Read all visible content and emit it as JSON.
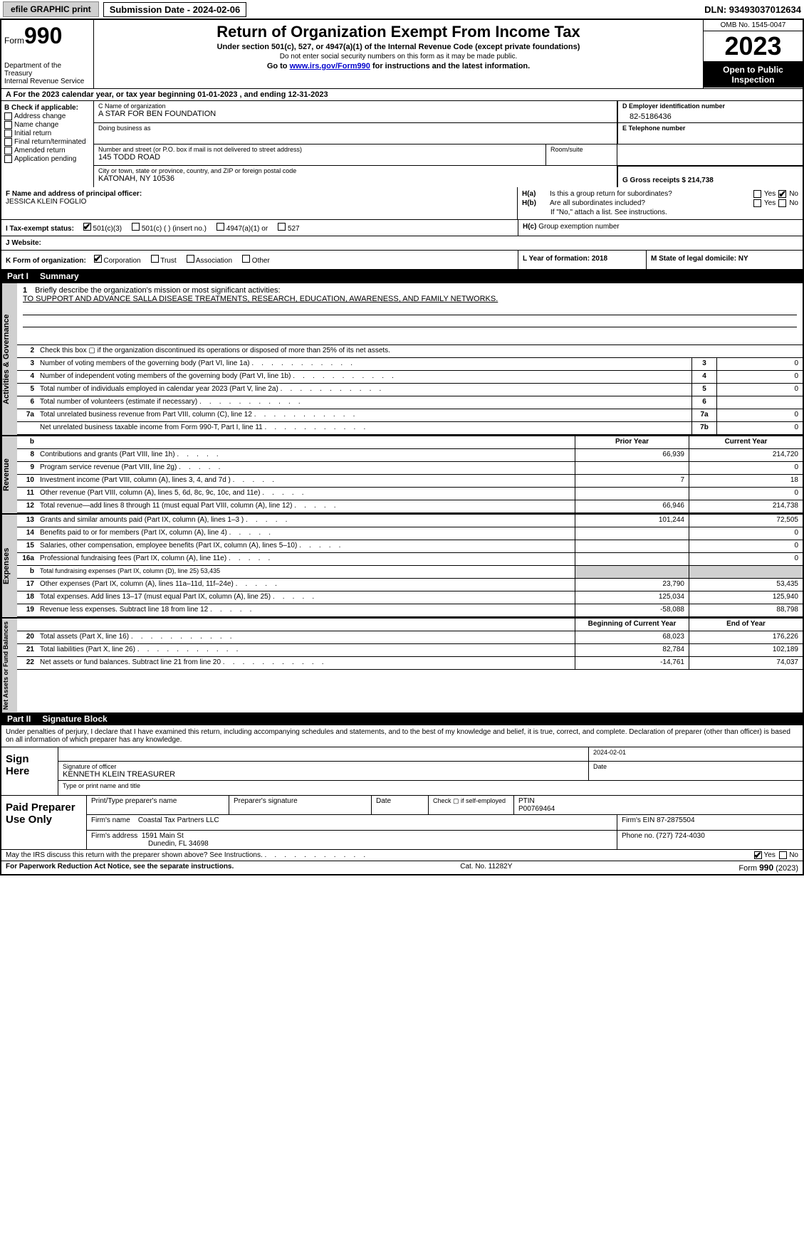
{
  "topbar": {
    "efile": "efile GRAPHIC print",
    "submission_label": "Submission Date - 2024-02-06",
    "dln_label": "DLN: 93493037012634"
  },
  "header": {
    "form_label": "Form",
    "form_number": "990",
    "dept": "Department of the Treasury",
    "irs": "Internal Revenue Service",
    "title": "Return of Organization Exempt From Income Tax",
    "subtitle": "Under section 501(c), 527, or 4947(a)(1) of the Internal Revenue Code (except private foundations)",
    "note1": "Do not enter social security numbers on this form as it may be made public.",
    "note2_pre": "Go to ",
    "note2_link": "www.irs.gov/Form990",
    "note2_post": " for instructions and the latest information.",
    "omb": "OMB No. 1545-0047",
    "year": "2023",
    "inspection": "Open to Public Inspection"
  },
  "line_a": "For the 2023 calendar year, or tax year beginning 01-01-2023   , and ending 12-31-2023",
  "col_b": {
    "hdr": "B Check if applicable:",
    "items": [
      "Address change",
      "Name change",
      "Initial return",
      "Final return/terminated",
      "Amended return",
      "Application pending"
    ]
  },
  "section_c": {
    "name_lbl": "C Name of organization",
    "name": "A STAR FOR BEN FOUNDATION",
    "dba_lbl": "Doing business as",
    "addr_lbl": "Number and street (or P.O. box if mail is not delivered to street address)",
    "addr": "145 TODD ROAD",
    "room_lbl": "Room/suite",
    "city_lbl": "City or town, state or province, country, and ZIP or foreign postal code",
    "city": "KATONAH, NY  10536"
  },
  "section_d": {
    "lbl": "D Employer identification number",
    "val": "82-5186436"
  },
  "section_e": {
    "lbl": "E Telephone number"
  },
  "section_g": {
    "lbl": "G Gross receipts $ 214,738"
  },
  "section_f": {
    "lbl": "F  Name and address of principal officer:",
    "name": "JESSICA KLEIN FOGLIO"
  },
  "section_h": {
    "a_lbl": "H(a)",
    "a_q": "Is this a group return for subordinates?",
    "b_lbl": "H(b)",
    "b_q": "Are all subordinates included?",
    "b_note": "If \"No,\" attach a list. See instructions.",
    "c_lbl": "H(c)",
    "c_q": "Group exemption number",
    "yes": "Yes",
    "no": "No"
  },
  "section_i": {
    "lbl": "I   Tax-exempt status:",
    "o1": "501(c)(3)",
    "o2": "501(c) (  ) (insert no.)",
    "o3": "4947(a)(1) or",
    "o4": "527"
  },
  "section_j": {
    "lbl": "J   Website:"
  },
  "section_k": {
    "lbl": "K Form of organization:",
    "o1": "Corporation",
    "o2": "Trust",
    "o3": "Association",
    "o4": "Other"
  },
  "section_l": {
    "lbl": "L Year of formation: 2018"
  },
  "section_m": {
    "lbl": "M State of legal domicile: NY"
  },
  "part1": {
    "num": "Part I",
    "title": "Summary"
  },
  "mission": {
    "num": "1",
    "lbl": "Briefly describe the organization's mission or most significant activities:",
    "text": "TO SUPPORT AND ADVANCE SALLA DISEASE TREATMENTS, RESEARCH, EDUCATION, AWARENESS, AND FAMILY NETWORKS."
  },
  "gov_rows": [
    {
      "n": "2",
      "d": "Check this box ▢ if the organization discontinued its operations or disposed of more than 25% of its net assets."
    },
    {
      "n": "3",
      "d": "Number of voting members of the governing body (Part VI, line 1a)",
      "box": "3",
      "v": "0"
    },
    {
      "n": "4",
      "d": "Number of independent voting members of the governing body (Part VI, line 1b)",
      "box": "4",
      "v": "0"
    },
    {
      "n": "5",
      "d": "Total number of individuals employed in calendar year 2023 (Part V, line 2a)",
      "box": "5",
      "v": "0"
    },
    {
      "n": "6",
      "d": "Total number of volunteers (estimate if necessary)",
      "box": "6",
      "v": ""
    },
    {
      "n": "7a",
      "d": "Total unrelated business revenue from Part VIII, column (C), line 12",
      "box": "7a",
      "v": "0"
    },
    {
      "n": "",
      "d": "Net unrelated business taxable income from Form 990-T, Part I, line 11",
      "box": "7b",
      "v": "0"
    }
  ],
  "col_headers": {
    "b": "b",
    "prior": "Prior Year",
    "current": "Current Year"
  },
  "revenue_rows": [
    {
      "n": "8",
      "d": "Contributions and grants (Part VIII, line 1h)",
      "p": "66,939",
      "c": "214,720"
    },
    {
      "n": "9",
      "d": "Program service revenue (Part VIII, line 2g)",
      "p": "",
      "c": "0"
    },
    {
      "n": "10",
      "d": "Investment income (Part VIII, column (A), lines 3, 4, and 7d )",
      "p": "7",
      "c": "18"
    },
    {
      "n": "11",
      "d": "Other revenue (Part VIII, column (A), lines 5, 6d, 8c, 9c, 10c, and 11e)",
      "p": "",
      "c": "0"
    },
    {
      "n": "12",
      "d": "Total revenue—add lines 8 through 11 (must equal Part VIII, column (A), line 12)",
      "p": "66,946",
      "c": "214,738"
    }
  ],
  "expense_rows": [
    {
      "n": "13",
      "d": "Grants and similar amounts paid (Part IX, column (A), lines 1–3 )",
      "p": "101,244",
      "c": "72,505"
    },
    {
      "n": "14",
      "d": "Benefits paid to or for members (Part IX, column (A), line 4)",
      "p": "",
      "c": "0"
    },
    {
      "n": "15",
      "d": "Salaries, other compensation, employee benefits (Part IX, column (A), lines 5–10)",
      "p": "",
      "c": "0"
    },
    {
      "n": "16a",
      "d": "Professional fundraising fees (Part IX, column (A), line 11e)",
      "p": "",
      "c": "0"
    },
    {
      "n": "b",
      "d": "Total fundraising expenses (Part IX, column (D), line 25) 53,435",
      "shaded": true
    },
    {
      "n": "17",
      "d": "Other expenses (Part IX, column (A), lines 11a–11d, 11f–24e)",
      "p": "23,790",
      "c": "53,435"
    },
    {
      "n": "18",
      "d": "Total expenses. Add lines 13–17 (must equal Part IX, column (A), line 25)",
      "p": "125,034",
      "c": "125,940"
    },
    {
      "n": "19",
      "d": "Revenue less expenses. Subtract line 18 from line 12",
      "p": "-58,088",
      "c": "88,798"
    }
  ],
  "net_headers": {
    "begin": "Beginning of Current Year",
    "end": "End of Year"
  },
  "net_rows": [
    {
      "n": "20",
      "d": "Total assets (Part X, line 16)",
      "p": "68,023",
      "c": "176,226"
    },
    {
      "n": "21",
      "d": "Total liabilities (Part X, line 26)",
      "p": "82,784",
      "c": "102,189"
    },
    {
      "n": "22",
      "d": "Net assets or fund balances. Subtract line 21 from line 20",
      "p": "-14,761",
      "c": "74,037"
    }
  ],
  "vert_labels": {
    "gov": "Activities & Governance",
    "rev": "Revenue",
    "exp": "Expenses",
    "net": "Net Assets or Fund Balances"
  },
  "part2": {
    "num": "Part II",
    "title": "Signature Block"
  },
  "declare": "Under penalties of perjury, I declare that I have examined this return, including accompanying schedules and statements, and to the best of my knowledge and belief, it is true, correct, and complete. Declaration of preparer (other than officer) is based on all information of which preparer has any knowledge.",
  "sign": {
    "lbl": "Sign Here",
    "date": "2024-02-01",
    "sig_lbl": "Signature of officer",
    "name": "KENNETH KLEIN TREASURER",
    "type_lbl": "Type or print name and title",
    "date_lbl": "Date"
  },
  "prep": {
    "lbl": "Paid Preparer Use Only",
    "h_name": "Print/Type preparer's name",
    "h_sig": "Preparer's signature",
    "h_date": "Date",
    "h_self": "Check ▢ if self-employed",
    "h_ptin": "PTIN",
    "ptin": "P00769464",
    "firm_name_lbl": "Firm's name",
    "firm_name": "Coastal Tax Partners LLC",
    "firm_ein_lbl": "Firm's EIN 87-2875504",
    "firm_addr_lbl": "Firm's address",
    "firm_addr1": "1591 Main St",
    "firm_addr2": "Dunedin, FL  34698",
    "phone_lbl": "Phone no. (727) 724-4030"
  },
  "discuss": {
    "q": "May the IRS discuss this return with the preparer shown above? See Instructions.",
    "yes": "Yes",
    "no": "No"
  },
  "footer": {
    "l": "For Paperwork Reduction Act Notice, see the separate instructions.",
    "m": "Cat. No. 11282Y",
    "r_pre": "Form ",
    "r_num": "990",
    "r_post": " (2023)"
  }
}
